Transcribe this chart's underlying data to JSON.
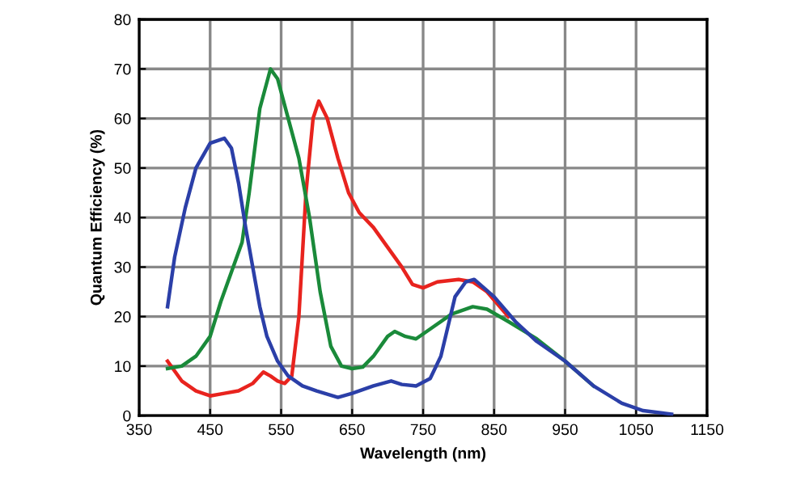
{
  "chart_data": {
    "type": "line",
    "xlabel": "Wavelength (nm)",
    "ylabel": "Quantum Efficiency (%)",
    "xlim": [
      350,
      1150
    ],
    "xticks": [
      350,
      450,
      550,
      650,
      750,
      850,
      950,
      1050,
      1150
    ],
    "ylim": [
      0,
      80
    ],
    "yticks": [
      0,
      10,
      20,
      30,
      40,
      50,
      60,
      70,
      80
    ],
    "grid": true,
    "series": [
      {
        "color": "#e8231e",
        "x": [
          390,
          410,
          430,
          450,
          470,
          490,
          510,
          525,
          535,
          545,
          555,
          565,
          575,
          585,
          595,
          603,
          615,
          630,
          645,
          660,
          680,
          700,
          720,
          735,
          750,
          770,
          800,
          820,
          840,
          870
        ],
        "values": [
          11,
          7,
          5,
          4,
          4.5,
          5,
          6.5,
          8.8,
          8,
          7,
          6.5,
          8,
          20,
          45,
          60,
          63.5,
          60,
          52,
          45,
          41,
          38,
          34,
          30,
          26.5,
          25.8,
          27,
          27.5,
          27,
          25,
          20
        ]
      },
      {
        "color": "#1a8a3a",
        "x": [
          390,
          410,
          430,
          450,
          465,
          480,
          495,
          505,
          520,
          535,
          545,
          560,
          575,
          590,
          605,
          620,
          635,
          650,
          665,
          680,
          700,
          710,
          725,
          740,
          760,
          790,
          820,
          840,
          870,
          910,
          950,
          990
        ],
        "values": [
          9.5,
          10,
          12,
          16,
          23,
          29,
          35,
          45,
          62,
          70,
          68,
          60,
          52,
          40,
          25,
          14,
          10,
          9.5,
          9.8,
          12,
          16,
          17,
          16,
          15.5,
          17.5,
          20.5,
          22,
          21.5,
          19,
          15.5,
          11,
          6
        ]
      },
      {
        "color": "#2b3fa8",
        "x": [
          390,
          400,
          415,
          430,
          450,
          470,
          480,
          490,
          500,
          510,
          520,
          530,
          545,
          560,
          580,
          600,
          630,
          650,
          680,
          705,
          720,
          740,
          760,
          775,
          785,
          795,
          810,
          822,
          850,
          880,
          910,
          950,
          990,
          1030,
          1060,
          1100
        ],
        "values": [
          22,
          32,
          42,
          50,
          55,
          56,
          54,
          47,
          38,
          30,
          22,
          16,
          11,
          8,
          6,
          5,
          3.7,
          4.5,
          6,
          7,
          6.3,
          6,
          7.5,
          12,
          18,
          24,
          27,
          27.5,
          24,
          19,
          15,
          11,
          6,
          2.5,
          1,
          0.3
        ]
      }
    ]
  }
}
